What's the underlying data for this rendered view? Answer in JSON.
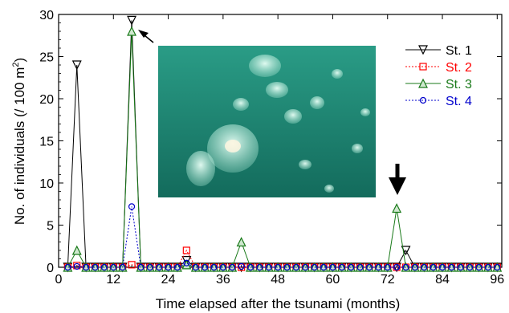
{
  "chart_data": {
    "type": "line",
    "xlabel": "Time elapsed after the tsunami (months)",
    "ylabel": "No. of individuals (/ 100 m",
    "ylabel_sup": "2",
    "ylabel_close": ")",
    "xlim": [
      0,
      97
    ],
    "ylim": [
      0,
      30
    ],
    "xticks": [
      0,
      12,
      24,
      36,
      48,
      60,
      72,
      84,
      96
    ],
    "yticks": [
      0,
      5,
      10,
      15,
      20,
      25,
      30
    ],
    "legend_position": "top-right",
    "series": [
      {
        "name": "St. 1",
        "color": "#000000",
        "dash": "",
        "marker": "triangle-down",
        "x": [
          2,
          4,
          6,
          8,
          10,
          12,
          14,
          16,
          18,
          20,
          22,
          24,
          26,
          28,
          30,
          32,
          34,
          36,
          38,
          40,
          42,
          44,
          46,
          48,
          50,
          52,
          54,
          56,
          58,
          60,
          62,
          64,
          66,
          68,
          70,
          72,
          74,
          76,
          78,
          80,
          82,
          84,
          86,
          88,
          90,
          92,
          94,
          96
        ],
        "y": [
          0,
          24,
          0,
          0,
          0,
          0,
          0,
          29.3,
          0,
          0,
          0,
          0,
          0,
          0.8,
          0,
          0,
          0,
          0,
          0,
          0,
          0,
          0,
          0,
          0,
          0,
          0,
          0,
          0,
          0,
          0,
          0,
          0,
          0,
          0,
          0,
          0,
          0,
          2,
          0,
          0,
          0,
          0,
          0,
          0,
          0,
          0,
          0,
          0
        ]
      },
      {
        "name": "St. 2",
        "color": "#ff0000",
        "dash": "2,2",
        "marker": "square",
        "x": [
          2,
          4,
          6,
          8,
          10,
          12,
          14,
          16,
          18,
          20,
          22,
          24,
          26,
          28,
          30,
          32,
          34,
          36,
          38,
          40,
          42,
          44,
          46,
          48,
          50,
          52,
          54,
          56,
          58,
          60,
          62,
          64,
          66,
          68,
          70,
          72,
          74,
          76,
          78,
          80,
          82,
          84,
          86,
          88,
          90,
          92,
          94,
          96
        ],
        "y": [
          0,
          0.2,
          0,
          0,
          0,
          0,
          0,
          0.3,
          0,
          0,
          0,
          0,
          0,
          2,
          0,
          0,
          0,
          0,
          0,
          0,
          0,
          0,
          0,
          0,
          0,
          0,
          0,
          0,
          0,
          0,
          0,
          0,
          0,
          0,
          0,
          0,
          0,
          0,
          0,
          0,
          0,
          0,
          0,
          0,
          0,
          0,
          0,
          0
        ]
      },
      {
        "name": "St. 3",
        "color": "#1a7a1a",
        "dash": "",
        "marker": "triangle-up",
        "x": [
          2,
          4,
          6,
          8,
          10,
          12,
          14,
          16,
          18,
          20,
          22,
          24,
          26,
          28,
          30,
          32,
          34,
          36,
          38,
          40,
          42,
          44,
          46,
          48,
          50,
          52,
          54,
          56,
          58,
          60,
          62,
          64,
          66,
          68,
          70,
          72,
          74,
          76,
          78,
          80,
          82,
          84,
          86,
          88,
          90,
          92,
          94,
          96
        ],
        "y": [
          0,
          2,
          0,
          0,
          0,
          0,
          0,
          28,
          0,
          0,
          0,
          0,
          0,
          0.3,
          0,
          0,
          0,
          0,
          0,
          3,
          0,
          0,
          0,
          0,
          0,
          0,
          0,
          0,
          0,
          0,
          0,
          0,
          0,
          0,
          0,
          0,
          7,
          0,
          0,
          0,
          0,
          0,
          0,
          0,
          0,
          0,
          0,
          0
        ]
      },
      {
        "name": "St. 4",
        "color": "#0000cc",
        "dash": "2,2",
        "marker": "circle",
        "x": [
          2,
          4,
          6,
          8,
          10,
          12,
          14,
          16,
          18,
          20,
          22,
          24,
          26,
          28,
          30,
          32,
          34,
          36,
          38,
          40,
          42,
          44,
          46,
          48,
          50,
          52,
          54,
          56,
          58,
          60,
          62,
          64,
          66,
          68,
          70,
          72,
          74,
          76,
          78,
          80,
          82,
          84,
          86,
          88,
          90,
          92,
          94,
          96
        ],
        "y": [
          0,
          0.1,
          0,
          0,
          0,
          0,
          0,
          7.2,
          0,
          0,
          0,
          0,
          0,
          0.5,
          0,
          0,
          0,
          0,
          0,
          0.1,
          0,
          0,
          0,
          0,
          0,
          0,
          0,
          0,
          0,
          0,
          0,
          0,
          0,
          0,
          0,
          0,
          0,
          0,
          0,
          0,
          0,
          0,
          0,
          0,
          0,
          0,
          0,
          0
        ]
      }
    ]
  },
  "inset_photo": {
    "subject": "jellyfish-photo",
    "water_color": "#2a9c86",
    "water_dark": "#136b5c"
  }
}
